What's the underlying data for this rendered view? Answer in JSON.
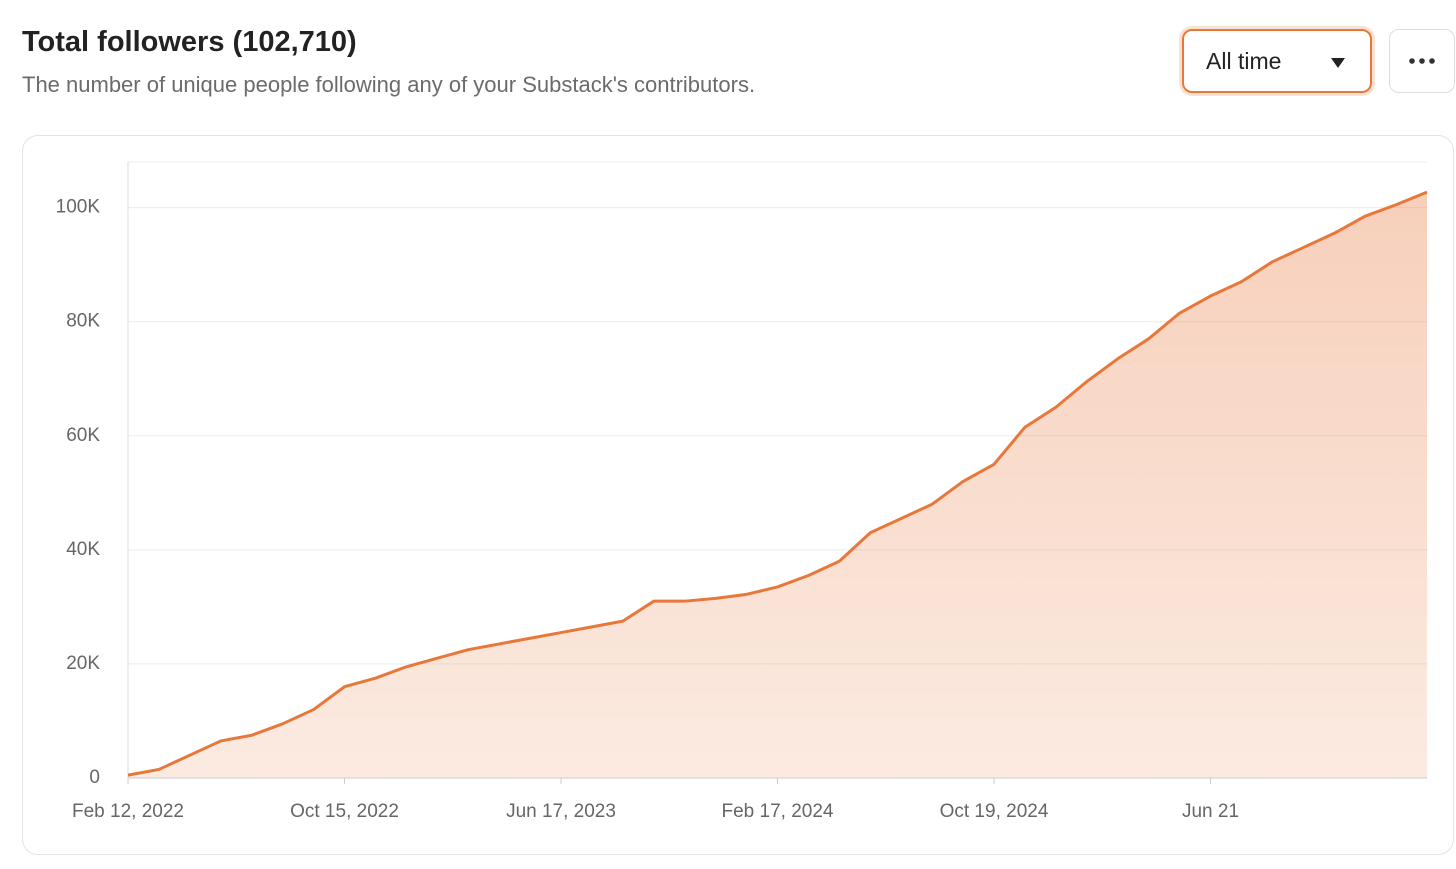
{
  "header": {
    "title": "Total followers (102,710)",
    "subtitle": "The number of unique people following any of your Substack's contributors.",
    "range": "All time"
  },
  "chart_data": {
    "type": "area",
    "color": "#e8773a",
    "grid": true,
    "categories": [
      "Feb 12, 2022",
      null,
      null,
      null,
      null,
      null,
      null,
      "Oct 15, 2022",
      null,
      null,
      null,
      null,
      null,
      null,
      "Jun 17, 2023",
      null,
      null,
      null,
      null,
      null,
      null,
      "Feb 17, 2024",
      null,
      null,
      null,
      null,
      null,
      null,
      "Oct 19, 2024",
      null,
      null,
      null,
      null,
      null,
      null,
      "Jun 21",
      null,
      null,
      null,
      null,
      null,
      null,
      null
    ],
    "values": [
      500,
      1500,
      4000,
      6500,
      7500,
      9500,
      12000,
      16000,
      17500,
      19500,
      21000,
      22500,
      23500,
      24500,
      25500,
      26500,
      27500,
      31000,
      31000,
      31500,
      32200,
      33500,
      35500,
      38000,
      43000,
      45500,
      48000,
      52000,
      55000,
      61500,
      65000,
      69500,
      73500,
      77000,
      81500,
      84500,
      87000,
      90500,
      93000,
      95500,
      98500,
      100500,
      102710
    ],
    "ylim": [
      0,
      108000
    ],
    "yticks": [
      0,
      {
        "value": 20000,
        "label": "20K"
      },
      {
        "value": 40000,
        "label": "40K"
      },
      {
        "value": 60000,
        "label": "60K"
      },
      {
        "value": 80000,
        "label": "80K"
      },
      {
        "value": 100000,
        "label": "100K"
      }
    ]
  }
}
